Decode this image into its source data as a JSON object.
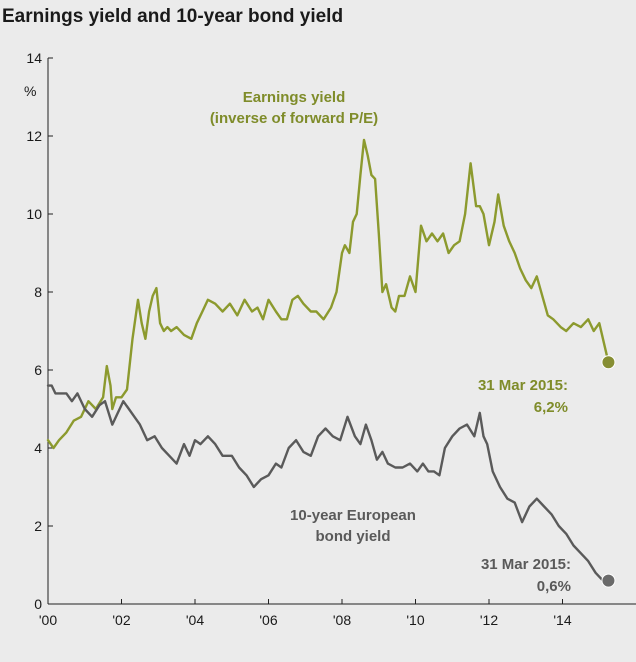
{
  "chart_data": {
    "type": "line",
    "title": "Earnings yield and 10-year bond yield",
    "ylabel": "%",
    "xlabel": "",
    "xlim": [
      2000,
      2016
    ],
    "ylim": [
      0,
      14
    ],
    "yticks": [
      "0",
      "2",
      "4",
      "6",
      "8",
      "10",
      "12",
      "14"
    ],
    "xticks": [
      "'00",
      "'02",
      "'04",
      "'06",
      "'08",
      "'10",
      "'12",
      "'14"
    ],
    "grid": false,
    "series": [
      {
        "name": "Earnings yield (inverse of forward P/E)",
        "label_lines": [
          "Earnings yield",
          "(inverse of forward P/E)"
        ],
        "color": "#8c9a2e",
        "x": [
          2000.0,
          2000.15,
          2000.3,
          2000.5,
          2000.7,
          2000.9,
          2001.1,
          2001.3,
          2001.5,
          2001.6,
          2001.7,
          2001.75,
          2001.85,
          2002.0,
          2002.15,
          2002.3,
          2002.45,
          2002.55,
          2002.65,
          2002.75,
          2002.85,
          2002.95,
          2003.05,
          2003.15,
          2003.25,
          2003.35,
          2003.5,
          2003.7,
          2003.9,
          2004.05,
          2004.2,
          2004.35,
          2004.55,
          2004.75,
          2004.95,
          2005.15,
          2005.35,
          2005.55,
          2005.7,
          2005.85,
          2006.0,
          2006.2,
          2006.35,
          2006.5,
          2006.65,
          2006.8,
          2006.95,
          2007.15,
          2007.3,
          2007.5,
          2007.7,
          2007.85,
          2008.0,
          2008.08,
          2008.2,
          2008.3,
          2008.4,
          2008.5,
          2008.6,
          2008.7,
          2008.8,
          2008.9,
          2009.0,
          2009.1,
          2009.2,
          2009.35,
          2009.45,
          2009.55,
          2009.7,
          2009.85,
          2010.0,
          2010.15,
          2010.3,
          2010.45,
          2010.6,
          2010.75,
          2010.9,
          2011.05,
          2011.2,
          2011.35,
          2011.5,
          2011.65,
          2011.75,
          2011.85,
          2012.0,
          2012.15,
          2012.25,
          2012.4,
          2012.55,
          2012.7,
          2012.85,
          2013.0,
          2013.15,
          2013.3,
          2013.45,
          2013.6,
          2013.75,
          2013.95,
          2014.1,
          2014.3,
          2014.5,
          2014.7,
          2014.85,
          2015.0,
          2015.25
        ],
        "y": [
          4.2,
          4.0,
          4.2,
          4.4,
          4.7,
          4.8,
          5.2,
          5.0,
          5.3,
          6.1,
          5.6,
          5.0,
          5.3,
          5.3,
          5.5,
          6.8,
          7.8,
          7.2,
          6.8,
          7.5,
          7.9,
          8.1,
          7.2,
          7.0,
          7.1,
          7.0,
          7.1,
          6.9,
          6.8,
          7.2,
          7.5,
          7.8,
          7.7,
          7.5,
          7.7,
          7.4,
          7.8,
          7.5,
          7.6,
          7.3,
          7.8,
          7.5,
          7.3,
          7.3,
          7.8,
          7.9,
          7.7,
          7.5,
          7.5,
          7.3,
          7.6,
          8.0,
          9.0,
          9.2,
          9.0,
          9.8,
          10.0,
          11.0,
          11.9,
          11.5,
          11.0,
          10.9,
          9.5,
          8.0,
          8.2,
          7.6,
          7.5,
          7.9,
          7.9,
          8.4,
          8.0,
          9.7,
          9.3,
          9.5,
          9.3,
          9.5,
          9.0,
          9.2,
          9.3,
          10.0,
          11.3,
          10.2,
          10.2,
          10.0,
          9.2,
          9.8,
          10.5,
          9.7,
          9.3,
          9.0,
          8.6,
          8.3,
          8.1,
          8.4,
          7.9,
          7.4,
          7.3,
          7.1,
          7.0,
          7.2,
          7.1,
          7.3,
          7.0,
          7.2,
          6.2
        ],
        "end_label": [
          "31 Mar 2015:",
          "6,2%"
        ]
      },
      {
        "name": "10-year European bond yield",
        "label_lines": [
          "10-year European",
          "bond yield"
        ],
        "color": "#5a5a5a",
        "x": [
          2000.0,
          2000.1,
          2000.2,
          2000.35,
          2000.5,
          2000.65,
          2000.8,
          2001.0,
          2001.2,
          2001.4,
          2001.55,
          2001.75,
          2001.9,
          2002.05,
          2002.2,
          2002.35,
          2002.5,
          2002.7,
          2002.9,
          2003.1,
          2003.3,
          2003.5,
          2003.7,
          2003.85,
          2004.0,
          2004.15,
          2004.35,
          2004.55,
          2004.75,
          2005.0,
          2005.2,
          2005.4,
          2005.6,
          2005.8,
          2006.0,
          2006.2,
          2006.35,
          2006.55,
          2006.75,
          2006.95,
          2007.15,
          2007.35,
          2007.55,
          2007.75,
          2007.95,
          2008.15,
          2008.35,
          2008.5,
          2008.65,
          2008.8,
          2008.95,
          2009.1,
          2009.25,
          2009.45,
          2009.65,
          2009.85,
          2010.05,
          2010.2,
          2010.35,
          2010.5,
          2010.65,
          2010.8,
          2011.0,
          2011.2,
          2011.4,
          2011.6,
          2011.75,
          2011.85,
          2011.95,
          2012.1,
          2012.3,
          2012.5,
          2012.7,
          2012.9,
          2013.1,
          2013.3,
          2013.5,
          2013.7,
          2013.9,
          2014.1,
          2014.3,
          2014.5,
          2014.7,
          2014.9,
          2015.1,
          2015.25
        ],
        "y": [
          5.6,
          5.6,
          5.4,
          5.4,
          5.4,
          5.2,
          5.4,
          5.0,
          4.8,
          5.1,
          5.2,
          4.6,
          4.9,
          5.2,
          5.0,
          4.8,
          4.6,
          4.2,
          4.3,
          4.0,
          3.8,
          3.6,
          4.1,
          3.8,
          4.2,
          4.1,
          4.3,
          4.1,
          3.8,
          3.8,
          3.5,
          3.3,
          3.0,
          3.2,
          3.3,
          3.6,
          3.5,
          4.0,
          4.2,
          3.9,
          3.8,
          4.3,
          4.5,
          4.3,
          4.2,
          4.8,
          4.3,
          4.1,
          4.6,
          4.2,
          3.7,
          3.9,
          3.6,
          3.5,
          3.5,
          3.6,
          3.4,
          3.6,
          3.4,
          3.4,
          3.3,
          4.0,
          4.3,
          4.5,
          4.6,
          4.3,
          4.9,
          4.3,
          4.1,
          3.4,
          3.0,
          2.7,
          2.6,
          2.1,
          2.5,
          2.7,
          2.5,
          2.3,
          2.0,
          1.8,
          1.5,
          1.3,
          1.1,
          0.8,
          0.6,
          0.6
        ],
        "end_label": [
          "31 Mar 2015:",
          "0,6%"
        ]
      }
    ]
  }
}
